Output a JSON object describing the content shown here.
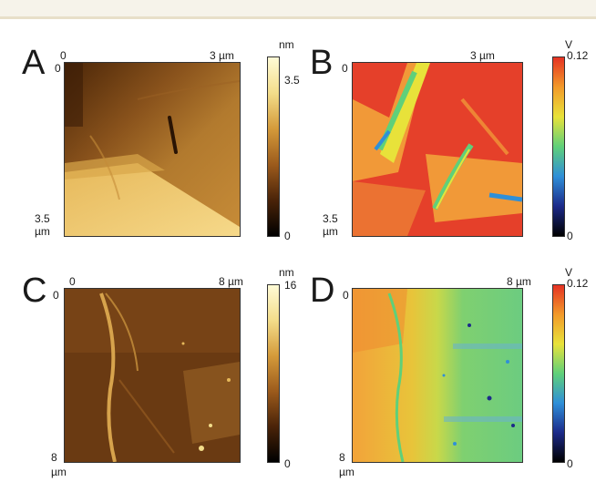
{
  "panels": [
    {
      "id": "A",
      "letter": "A",
      "x_origin": "0",
      "x_end": "3 µm",
      "y_origin": "0",
      "y_end": "3.5",
      "y_unit": "µm",
      "colorbar_unit": "nm",
      "colorbar_max": "3.5",
      "colorbar_min": "0",
      "colormap": "copper",
      "colors": [
        "#000000",
        "#4a2308",
        "#9c5b1c",
        "#d49a3a",
        "#f3dd8a",
        "#fffbd6"
      ]
    },
    {
      "id": "B",
      "letter": "B",
      "x_end": "3 µm",
      "y_origin": "0",
      "y_end": "3.5",
      "y_unit": "µm",
      "colorbar_unit": "V",
      "colorbar_max": "0.12",
      "colorbar_min": "0",
      "colormap": "jet",
      "colors": [
        "#000000",
        "#1c2a8a",
        "#2f8fd8",
        "#5fd07a",
        "#e8e23a",
        "#f29a2a",
        "#e53223"
      ]
    },
    {
      "id": "C",
      "letter": "C",
      "x_origin": "0",
      "x_end": "8 µm",
      "y_origin": "0",
      "y_end": "8",
      "y_unit": "µm",
      "colorbar_unit": "nm",
      "colorbar_max": "16",
      "colorbar_min": "0",
      "colormap": "copper",
      "colors": [
        "#000000",
        "#4a2308",
        "#9c5b1c",
        "#d49a3a",
        "#f3dd8a",
        "#fffbd6"
      ]
    },
    {
      "id": "D",
      "letter": "D",
      "x_end": "8 µm",
      "y_origin": "0",
      "y_end": "8",
      "y_unit": "µm",
      "colorbar_unit": "V",
      "colorbar_max": "0.12",
      "colorbar_min": "0",
      "colormap": "jet",
      "colors": [
        "#000000",
        "#1c2a8a",
        "#2f8fd8",
        "#5fd07a",
        "#e8e23a",
        "#f29a2a",
        "#e53223"
      ]
    }
  ]
}
